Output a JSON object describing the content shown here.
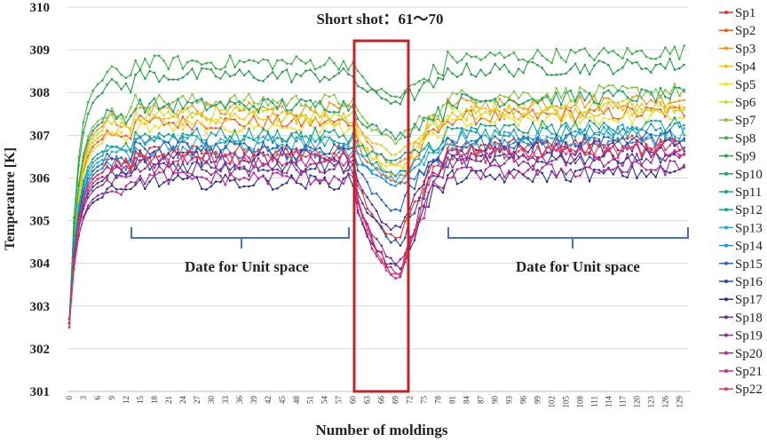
{
  "chart_data": {
    "type": "line",
    "title": "Short shot：61～70",
    "xlabel": "Number of moldings",
    "ylabel": "Temperature [K]",
    "ylim": [
      301,
      310
    ],
    "y_ticks": [
      "301",
      "302",
      "303",
      "304",
      "305",
      "306",
      "307",
      "308",
      "309",
      "310"
    ],
    "x_tick_labels": [
      "0",
      "3",
      "6",
      "9",
      "12",
      "15",
      "18",
      "21",
      "24",
      "27",
      "30",
      "33",
      "36",
      "39",
      "42",
      "45",
      "48",
      "51",
      "54",
      "57",
      "60",
      "63",
      "66",
      "69",
      "72",
      "75",
      "78",
      "81",
      "84",
      "87",
      "90",
      "93",
      "96",
      "99",
      "102",
      "105",
      "108",
      "111",
      "114",
      "117",
      "120",
      "123",
      "126",
      "129"
    ],
    "x_range": [
      0,
      131
    ],
    "legend_position": "right",
    "annotations": {
      "left_bracket": "Date for Unit space",
      "right_bracket": "Date for Unit space",
      "short_shot_range": [
        60,
        71
      ]
    },
    "series": [
      {
        "name": "Sp1",
        "color": "#e8312a",
        "start": 302.5,
        "plateau": 306.6,
        "dip": 304.6
      },
      {
        "name": "Sp2",
        "color": "#ee5b2a",
        "start": 302.6,
        "plateau": 307.3,
        "dip": 305.9
      },
      {
        "name": "Sp3",
        "color": "#f7941d",
        "start": 302.6,
        "plateau": 307.6,
        "dip": 306.3
      },
      {
        "name": "Sp4",
        "color": "#f9c01a",
        "start": 302.6,
        "plateau": 307.4,
        "dip": 306.1
      },
      {
        "name": "Sp5",
        "color": "#f0e01e",
        "start": 302.6,
        "plateau": 307.2,
        "dip": 306.2
      },
      {
        "name": "Sp6",
        "color": "#c8dc28",
        "start": 302.6,
        "plateau": 307.5,
        "dip": 306.6
      },
      {
        "name": "Sp7",
        "color": "#86c441",
        "start": 302.6,
        "plateau": 307.8,
        "dip": 306.9
      },
      {
        "name": "Sp8",
        "color": "#3fae49",
        "start": 302.6,
        "plateau": 308.7,
        "dip": 307.9
      },
      {
        "name": "Sp9",
        "color": "#2a9d4e",
        "start": 302.6,
        "plateau": 308.4,
        "dip": 307.8
      },
      {
        "name": "Sp10",
        "color": "#1fa06a",
        "start": 302.6,
        "plateau": 307.7,
        "dip": 307.0
      },
      {
        "name": "Sp11",
        "color": "#19a289",
        "start": 302.6,
        "plateau": 307.0,
        "dip": 306.4
      },
      {
        "name": "Sp12",
        "color": "#16a3a3",
        "start": 302.6,
        "plateau": 306.9,
        "dip": 306.1
      },
      {
        "name": "Sp13",
        "color": "#2aa5d6",
        "start": 302.6,
        "plateau": 306.8,
        "dip": 306.0
      },
      {
        "name": "Sp14",
        "color": "#1e8fd6",
        "start": 302.6,
        "plateau": 306.6,
        "dip": 305.9
      },
      {
        "name": "Sp15",
        "color": "#2363b8",
        "start": 302.6,
        "plateau": 306.7,
        "dip": 305.3
      },
      {
        "name": "Sp16",
        "color": "#25459e",
        "start": 302.6,
        "plateau": 306.3,
        "dip": 304.5
      },
      {
        "name": "Sp17",
        "color": "#2d2f8f",
        "start": 302.7,
        "plateau": 305.9,
        "dip": 303.9
      },
      {
        "name": "Sp18",
        "color": "#5b2d90",
        "start": 302.6,
        "plateau": 306.5,
        "dip": 304.8
      },
      {
        "name": "Sp19",
        "color": "#8a2a92",
        "start": 302.6,
        "plateau": 306.2,
        "dip": 304.0
      },
      {
        "name": "Sp20",
        "color": "#b3259a",
        "start": 302.5,
        "plateau": 306.0,
        "dip": 303.7
      },
      {
        "name": "Sp21",
        "color": "#d6207f",
        "start": 302.5,
        "plateau": 306.4,
        "dip": 303.8
      },
      {
        "name": "Sp22",
        "color": "#e43b5a",
        "start": 302.5,
        "plateau": 306.5,
        "dip": 303.7
      }
    ]
  }
}
